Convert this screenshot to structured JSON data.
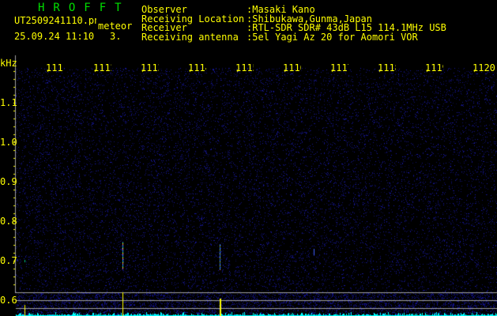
{
  "header": {
    "app_title": "HROFFT",
    "filename": "UT2509241110.png",
    "mode": "meteor",
    "datetime": "25.09.24 11:10",
    "count": "3.",
    "info": [
      {
        "label": "Observer",
        "value": ":Masaki Kano"
      },
      {
        "label": "Receiving Location",
        "value": ":Shibukawa,Gunma,Japan"
      },
      {
        "label": "Receiver",
        "value": ":RTL-SDR SDR# 43dB L15 114.1MHz USB"
      },
      {
        "label": "Receiving antenna",
        "value": ":5el Yagi Az 20 for Aomori VOR"
      }
    ]
  },
  "spectrogram": {
    "x_unit": "kHz",
    "x_ticks": [
      "1111",
      "1112",
      "1113",
      "1114",
      "1115",
      "1116",
      "1117",
      "1118",
      "1119",
      "1120"
    ],
    "y_ticks": [
      "1.1",
      "1.0",
      "0.9",
      "0.8",
      "0.7",
      "0.6"
    ],
    "colors": {
      "background": "#000000",
      "noise": "#1010a0",
      "text": "#ffff00",
      "title": "#00e000",
      "spectrum": "#00ffff",
      "grid": "#a0a0a0"
    }
  }
}
